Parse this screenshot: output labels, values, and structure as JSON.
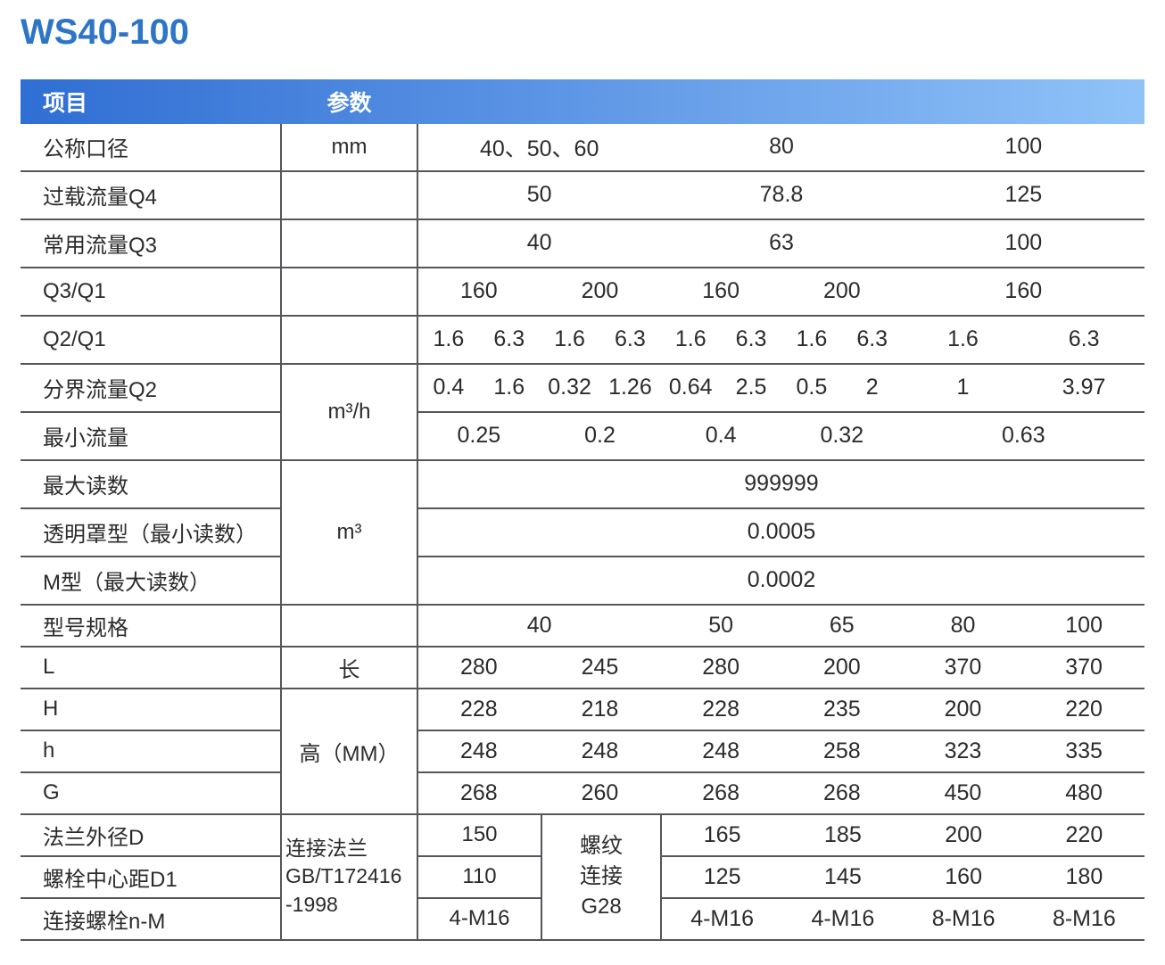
{
  "title": "WS40-100",
  "header": {
    "item": "项目",
    "param": "参数"
  },
  "colors": {
    "title_blue": "#2e75c5",
    "header_gradient_left": "#2f6ed3",
    "header_gradient_right": "#8fc3f8",
    "grid_line": "#55565a"
  },
  "rows": {
    "nominal": {
      "label": "公称口径",
      "unit": "mm",
      "values": [
        "40、50、60",
        "80",
        "100"
      ]
    },
    "q4": {
      "label": "过载流量Q4",
      "values": [
        "50",
        "78.8",
        "125"
      ]
    },
    "q3": {
      "label": "常用流量Q3",
      "values": [
        "40",
        "63",
        "100"
      ]
    },
    "q3q1": {
      "label": "Q3/Q1",
      "values": [
        "160",
        "200",
        "160",
        "200",
        "160"
      ]
    },
    "q2q1": {
      "label": "Q2/Q1",
      "values": [
        "1.6",
        "6.3",
        "1.6",
        "6.3",
        "1.6",
        "6.3",
        "1.6",
        "6.3",
        "1.6",
        "6.3"
      ]
    },
    "q2": {
      "label": "分界流量Q2",
      "unit": "m³/h",
      "values": [
        "0.4",
        "1.6",
        "0.32",
        "1.26",
        "0.64",
        "2.5",
        "0.5",
        "2",
        "1",
        "3.97"
      ]
    },
    "qmin": {
      "label": "最小流量",
      "values": [
        "0.25",
        "0.2",
        "0.4",
        "0.32",
        "0.63"
      ]
    },
    "rmax": {
      "label": "最大读数",
      "unit": "m³",
      "value": "999999"
    },
    "rcover": {
      "label": "透明罩型（最小读数）",
      "value": "0.0005"
    },
    "rmtype": {
      "label": "M型（最大读数）",
      "value": "0.0002"
    },
    "model": {
      "label": "型号规格",
      "values": [
        "40",
        "50",
        "65",
        "80",
        "100"
      ]
    },
    "dim_L": {
      "label": "L",
      "unit": "长",
      "values": [
        "280",
        "245",
        "280",
        "200",
        "370",
        "370"
      ]
    },
    "dim_H": {
      "label": "H",
      "unit": "高（MM）",
      "values": [
        "228",
        "218",
        "228",
        "235",
        "200",
        "220"
      ]
    },
    "dim_h": {
      "label": "h",
      "values": [
        "248",
        "248",
        "248",
        "258",
        "323",
        "335"
      ]
    },
    "dim_G": {
      "label": "G",
      "values": [
        "268",
        "260",
        "268",
        "268",
        "450",
        "480"
      ]
    },
    "flange_d": {
      "label": "法兰外径D",
      "col1": "150",
      "values": [
        "165",
        "185",
        "200",
        "220"
      ]
    },
    "bolt_d1": {
      "label": "螺栓中心距D1",
      "col1": "110",
      "values": [
        "125",
        "145",
        "160",
        "180"
      ]
    },
    "bolt_nm": {
      "label": "连接螺栓n-M",
      "col1": "4-M16",
      "values": [
        "4-M16",
        "4-M16",
        "8-M16",
        "8-M16"
      ]
    }
  },
  "flange_unit": {
    "lines": [
      "连接法兰",
      "GB/T172416",
      "-1998"
    ]
  },
  "thread_cell": {
    "lines": [
      "螺纹",
      "连接",
      "G28"
    ]
  }
}
